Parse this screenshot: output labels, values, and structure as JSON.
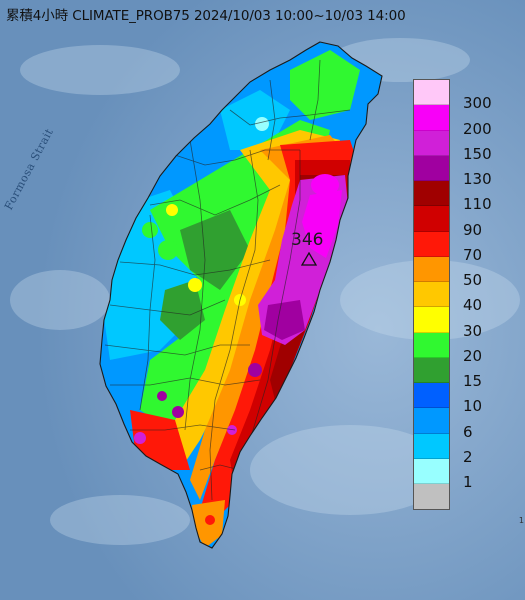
{
  "title": "累積4小時 CLIMATE_PROB75 2024/10/03 10:00~10/03 14:00",
  "strait_label": "Formosa Strait",
  "max_value": "346",
  "edge_label": "1",
  "legend": [
    {
      "label": "300",
      "color": "#ffc8f8"
    },
    {
      "label": "200",
      "color": "#f800f8"
    },
    {
      "label": "150",
      "color": "#d020d8"
    },
    {
      "label": "130",
      "color": "#a000a0"
    },
    {
      "label": "110",
      "color": "#a00000"
    },
    {
      "label": "90",
      "color": "#d00000"
    },
    {
      "label": "70",
      "color": "#ff1808"
    },
    {
      "label": "50",
      "color": "#ff9600"
    },
    {
      "label": "40",
      "color": "#ffc800"
    },
    {
      "label": "30",
      "color": "#ffff00"
    },
    {
      "label": "20",
      "color": "#30f830"
    },
    {
      "label": "15",
      "color": "#30a030"
    },
    {
      "label": "10",
      "color": "#0060ff"
    },
    {
      "label": "6",
      "color": "#0098ff"
    },
    {
      "label": "2",
      "color": "#00c8ff"
    },
    {
      "label": "1",
      "color": "#98ffff"
    },
    {
      "label": "",
      "color": "#c0c0c0"
    }
  ]
}
